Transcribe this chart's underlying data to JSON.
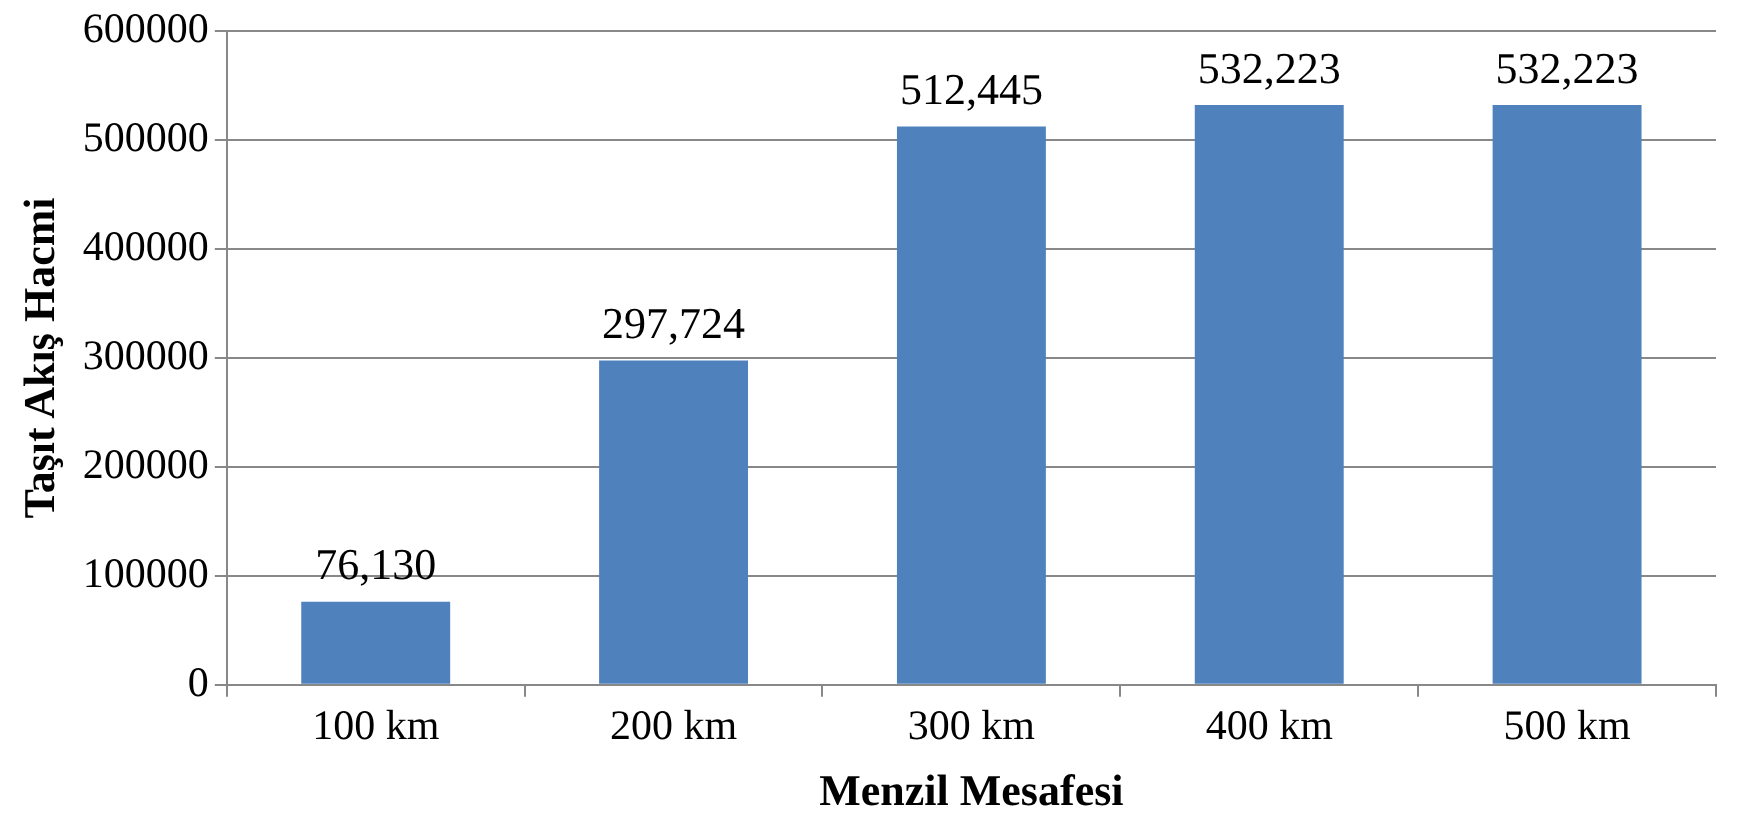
{
  "chart_data": {
    "type": "bar",
    "xlabel": "Menzil Mesafesi",
    "ylabel": "Taşıt Akış Hacmi",
    "categories": [
      "100 km",
      "200 km",
      "300 km",
      "400 km",
      "500 km"
    ],
    "values": [
      76130,
      297724,
      512445,
      532223,
      532223
    ],
    "value_labels": [
      "76,130",
      "297,724",
      "512,445",
      "532,223",
      "532,223"
    ],
    "color": "#4f81bd",
    "ylim": [
      0,
      600000
    ],
    "yticks": [
      0,
      100000,
      200000,
      300000,
      400000,
      500000,
      600000
    ],
    "grid": "y"
  }
}
